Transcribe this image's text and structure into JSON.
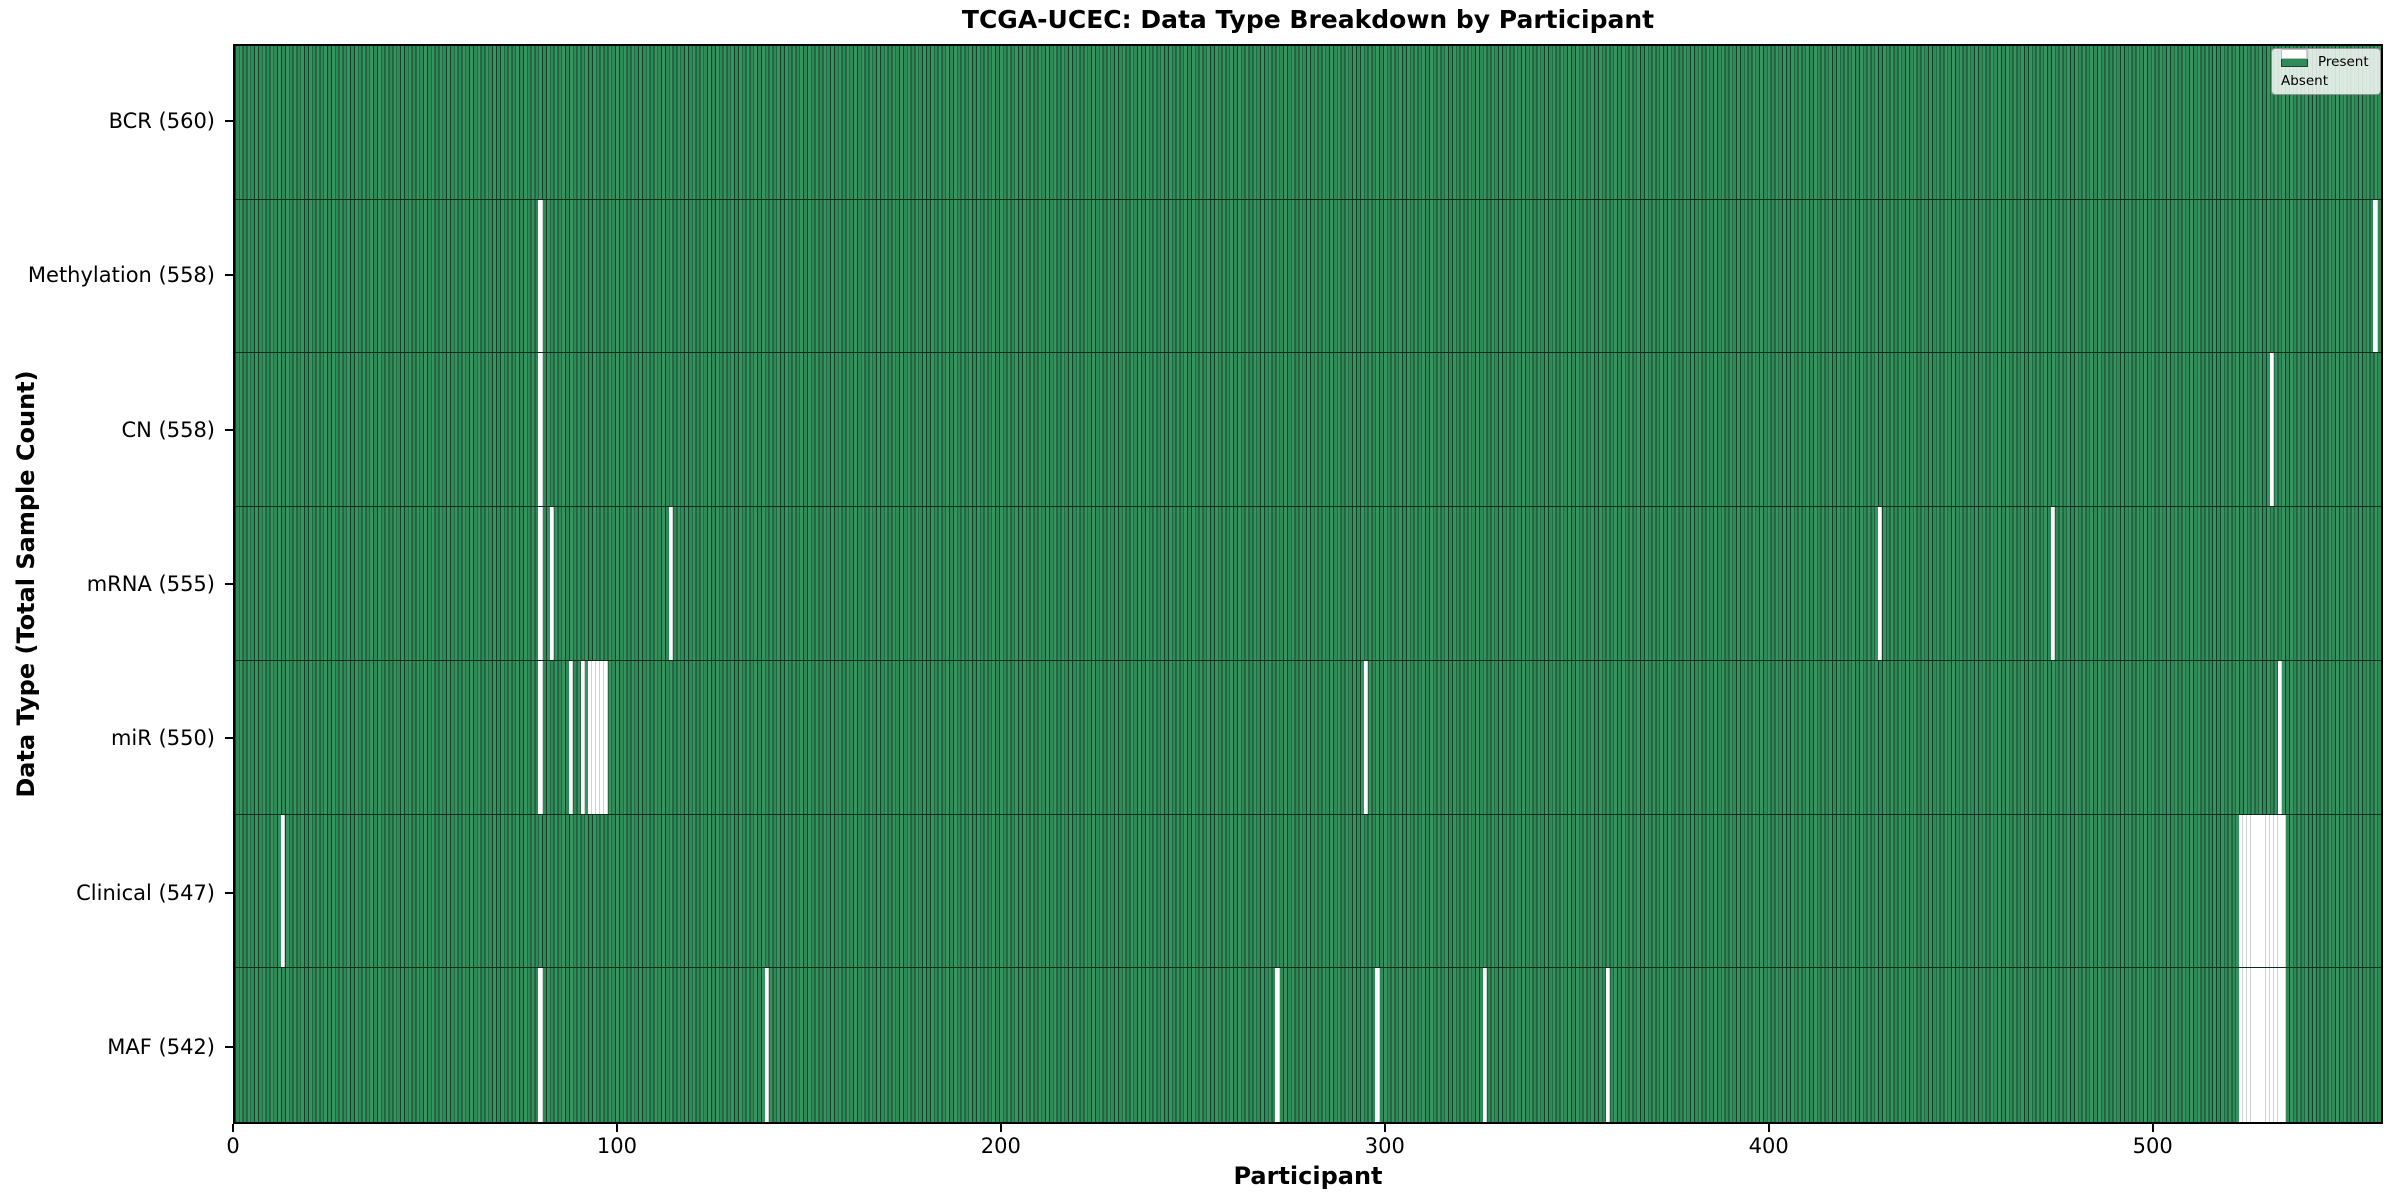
{
  "title": "TCGA-UCEC: Data Type Breakdown by Participant",
  "axes": {
    "x_label": "Participant",
    "y_label": "Data Type (Total Sample Count)",
    "x_ticks": [
      0,
      100,
      200,
      300,
      400,
      500
    ]
  },
  "legend": {
    "items": [
      {
        "label": "Present",
        "color": "#2e8b57"
      },
      {
        "label": "Absent",
        "color": "#ffffff"
      }
    ]
  },
  "colors": {
    "present_fill": "#2e8b57",
    "bar_edge": "#153f29",
    "absent_fill": "#ffffff",
    "plot_border": "#000000"
  },
  "chart_data": {
    "type": "heatmap",
    "title": "TCGA-UCEC: Data Type Breakdown by Participant",
    "xlabel": "Participant",
    "ylabel": "Data Type (Total Sample Count)",
    "x_range": [
      0,
      560
    ],
    "x_ticks": [
      0,
      100,
      200,
      300,
      400,
      500
    ],
    "total_participants": 560,
    "legend": [
      "Present",
      "Absent"
    ],
    "legend_position": "upper right",
    "grid": false,
    "rows": [
      {
        "data_type": "BCR",
        "label": "BCR (560)",
        "present_count": 560,
        "absent_indices": []
      },
      {
        "data_type": "Methylation",
        "label": "Methylation (558)",
        "present_count": 558,
        "absent_indices": [
          79,
          557
        ]
      },
      {
        "data_type": "CN",
        "label": "CN (558)",
        "present_count": 558,
        "absent_indices": [
          79,
          530
        ]
      },
      {
        "data_type": "mRNA",
        "label": "mRNA (555)",
        "present_count": 555,
        "absent_indices": [
          79,
          82,
          113,
          428,
          473
        ]
      },
      {
        "data_type": "miR",
        "label": "miR (550)",
        "present_count": 550,
        "absent_indices": [
          79,
          87,
          90,
          92,
          93,
          94,
          95,
          96,
          294,
          532
        ]
      },
      {
        "data_type": "Clinical",
        "label": "Clinical (547)",
        "present_count": 547,
        "absent_indices": [
          12,
          522,
          523,
          524,
          525,
          526,
          527,
          528,
          529,
          530,
          531,
          532,
          533
        ]
      },
      {
        "data_type": "MAF",
        "label": "MAF (542)",
        "present_count": 542,
        "absent_indices": [
          79,
          138,
          271,
          297,
          325,
          357,
          522,
          523,
          524,
          525,
          526,
          527,
          528,
          529,
          530,
          531,
          532,
          533
        ]
      }
    ]
  }
}
